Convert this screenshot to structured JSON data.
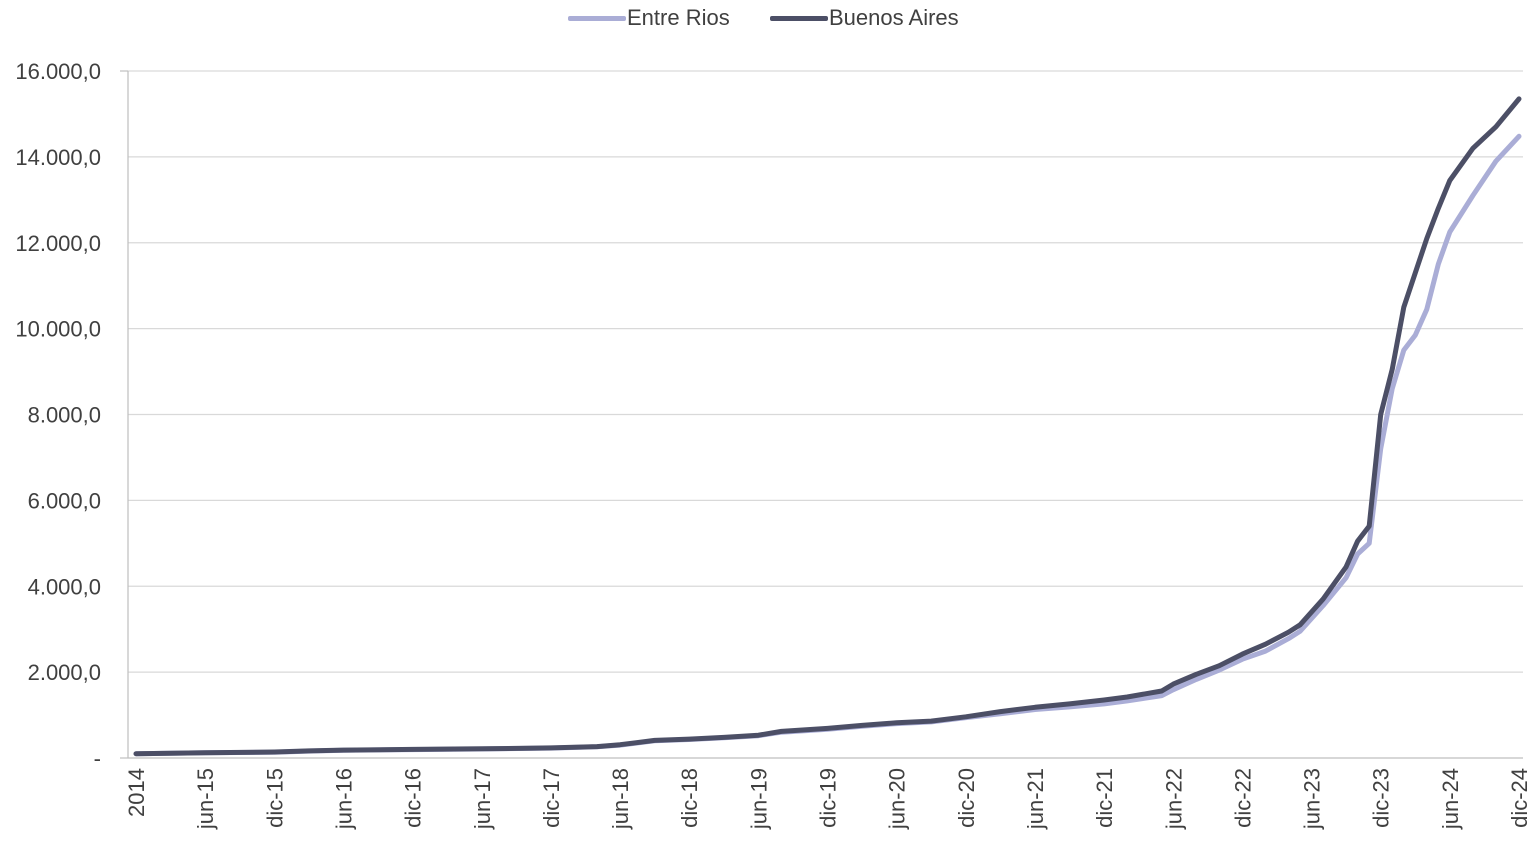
{
  "chart_data": {
    "type": "line",
    "title": "",
    "xlabel": "",
    "ylabel": "",
    "legend_position": "top-center",
    "grid": true,
    "ylim": [
      0,
      16000
    ],
    "y_tick_labels": [
      "-",
      "2.000,0",
      "4.000,0",
      "6.000,0",
      "8.000,0",
      "10.000,0",
      "12.000,0",
      "14.000,0",
      "16.000,0"
    ],
    "x_tick_labels": [
      "2014",
      "jun-15",
      "dic-15",
      "jun-16",
      "dic-16",
      "jun-17",
      "dic-17",
      "jun-18",
      "dic-18",
      "jun-19",
      "dic-19",
      "jun-20",
      "dic-20",
      "jun-21",
      "dic-21",
      "jun-22",
      "dic-22",
      "jun-23",
      "dic-23",
      "jun-24",
      "dic-24"
    ],
    "x_tick_months": [
      "2014-12",
      "2015-06",
      "2015-12",
      "2016-06",
      "2016-12",
      "2017-06",
      "2017-12",
      "2018-06",
      "2018-12",
      "2019-06",
      "2019-12",
      "2020-06",
      "2020-12",
      "2021-06",
      "2021-12",
      "2022-06",
      "2022-12",
      "2023-06",
      "2023-12",
      "2024-06",
      "2024-12"
    ],
    "series": [
      {
        "name": "Entre Rios",
        "color": "#aaadd6",
        "points": [
          [
            "2014-12",
            100
          ],
          [
            "2015-06",
            120
          ],
          [
            "2015-12",
            135
          ],
          [
            "2016-03",
            160
          ],
          [
            "2016-06",
            180
          ],
          [
            "2016-12",
            195
          ],
          [
            "2017-06",
            210
          ],
          [
            "2017-12",
            230
          ],
          [
            "2018-04",
            260
          ],
          [
            "2018-06",
            300
          ],
          [
            "2018-09",
            400
          ],
          [
            "2018-12",
            430
          ],
          [
            "2019-03",
            470
          ],
          [
            "2019-06",
            520
          ],
          [
            "2019-08",
            600
          ],
          [
            "2019-12",
            670
          ],
          [
            "2020-03",
            740
          ],
          [
            "2020-06",
            800
          ],
          [
            "2020-09",
            840
          ],
          [
            "2020-12",
            940
          ],
          [
            "2021-03",
            1030
          ],
          [
            "2021-06",
            1130
          ],
          [
            "2021-09",
            1190
          ],
          [
            "2021-12",
            1260
          ],
          [
            "2022-02",
            1330
          ],
          [
            "2022-05",
            1450
          ],
          [
            "2022-06",
            1590
          ],
          [
            "2022-08",
            1830
          ],
          [
            "2022-10",
            2050
          ],
          [
            "2022-12",
            2300
          ],
          [
            "2023-02",
            2490
          ],
          [
            "2023-04",
            2780
          ],
          [
            "2023-05",
            2950
          ],
          [
            "2023-07",
            3550
          ],
          [
            "2023-09",
            4200
          ],
          [
            "2023-10",
            4750
          ],
          [
            "2023-11",
            5000
          ],
          [
            "2023-12",
            7200
          ],
          [
            "2024-01",
            8600
          ],
          [
            "2024-02",
            9500
          ],
          [
            "2024-03",
            9850
          ],
          [
            "2024-04",
            10450
          ],
          [
            "2024-05",
            11500
          ],
          [
            "2024-06",
            12250
          ],
          [
            "2024-08",
            13100
          ],
          [
            "2024-10",
            13900
          ],
          [
            "2024-12",
            14480
          ]
        ]
      },
      {
        "name": "Buenos Aires",
        "color": "#4c4f66",
        "points": [
          [
            "2014-12",
            100
          ],
          [
            "2015-06",
            120
          ],
          [
            "2015-12",
            140
          ],
          [
            "2016-03",
            165
          ],
          [
            "2016-06",
            185
          ],
          [
            "2016-12",
            200
          ],
          [
            "2017-06",
            215
          ],
          [
            "2017-12",
            235
          ],
          [
            "2018-04",
            265
          ],
          [
            "2018-06",
            310
          ],
          [
            "2018-09",
            410
          ],
          [
            "2018-12",
            440
          ],
          [
            "2019-03",
            480
          ],
          [
            "2019-06",
            530
          ],
          [
            "2019-08",
            620
          ],
          [
            "2019-12",
            690
          ],
          [
            "2020-03",
            760
          ],
          [
            "2020-06",
            820
          ],
          [
            "2020-09",
            860
          ],
          [
            "2020-12",
            960
          ],
          [
            "2021-03",
            1080
          ],
          [
            "2021-06",
            1180
          ],
          [
            "2021-09",
            1260
          ],
          [
            "2021-12",
            1350
          ],
          [
            "2022-02",
            1420
          ],
          [
            "2022-05",
            1560
          ],
          [
            "2022-06",
            1720
          ],
          [
            "2022-08",
            1950
          ],
          [
            "2022-10",
            2150
          ],
          [
            "2022-12",
            2420
          ],
          [
            "2023-02",
            2650
          ],
          [
            "2023-04",
            2930
          ],
          [
            "2023-05",
            3100
          ],
          [
            "2023-07",
            3700
          ],
          [
            "2023-09",
            4450
          ],
          [
            "2023-10",
            5050
          ],
          [
            "2023-11",
            5400
          ],
          [
            "2023-12",
            8000
          ],
          [
            "2024-01",
            9050
          ],
          [
            "2024-02",
            10500
          ],
          [
            "2024-03",
            11300
          ],
          [
            "2024-04",
            12100
          ],
          [
            "2024-05",
            12800
          ],
          [
            "2024-06",
            13450
          ],
          [
            "2024-08",
            14200
          ],
          [
            "2024-10",
            14700
          ],
          [
            "2024-12",
            15350
          ]
        ]
      }
    ]
  }
}
